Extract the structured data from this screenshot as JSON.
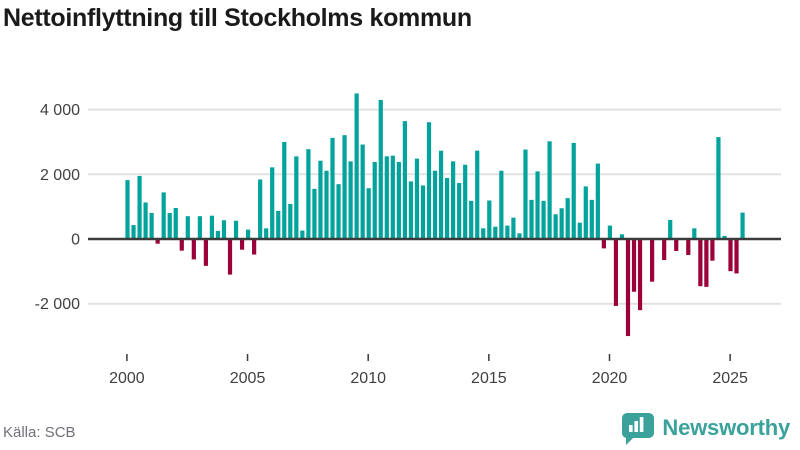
{
  "header": {
    "title": "Nettoinflyttning till Stockholms kommun"
  },
  "footer": {
    "source": "Källa: SCB",
    "logo_text": "Newsworthy"
  },
  "colors": {
    "positive": "#02a39c",
    "negative": "#9a0239",
    "axis": "#3b3b3b",
    "gridline": "#e2e2e2",
    "tick_label": "#414141",
    "logo": "#3aa29b"
  },
  "chart_data": {
    "type": "bar",
    "title": "Nettoinflyttning till Stockholms kommun",
    "source": "Källa: SCB",
    "frequency": "quarterly",
    "start_quarter": "2000-Q1",
    "end_quarter": "2025-Q3",
    "x_tick_labels": [
      "2000",
      "2005",
      "2010",
      "2015",
      "2020",
      "2025"
    ],
    "y_ticks": [
      {
        "value": 4000,
        "label": "4 000"
      },
      {
        "value": 2000,
        "label": "2 000"
      },
      {
        "value": 0,
        "label": "0"
      },
      {
        "value": -2000,
        "label": "-2 000"
      }
    ],
    "ylim": [
      -3300,
      4700
    ],
    "grid": "horizontal",
    "legend": "none",
    "values": [
      1820,
      430,
      1950,
      1130,
      805,
      -145,
      1440,
      805,
      960,
      -360,
      705,
      -630,
      705,
      -830,
      720,
      250,
      580,
      -1100,
      565,
      -330,
      290,
      -480,
      1840,
      330,
      2215,
      870,
      3000,
      1085,
      2555,
      260,
      2775,
      1550,
      2420,
      2110,
      3125,
      1695,
      3210,
      2400,
      4500,
      2920,
      1570,
      2380,
      4300,
      2555,
      2575,
      2380,
      3645,
      1780,
      2485,
      1655,
      3610,
      2110,
      2730,
      1885,
      2400,
      1730,
      2295,
      1180,
      2730,
      330,
      1190,
      380,
      2110,
      415,
      660,
      175,
      2765,
      1210,
      2090,
      1180,
      3020,
      765,
      950,
      1265,
      2970,
      505,
      1625,
      1210,
      2330,
      -290,
      415,
      -2070,
      145,
      -3000,
      -1630,
      -2200,
      0,
      -1320,
      0,
      -650,
      590,
      -370,
      0,
      -495,
      330,
      -1460,
      -1480,
      -670,
      3150,
      95,
      -995,
      -1065,
      815
    ]
  }
}
